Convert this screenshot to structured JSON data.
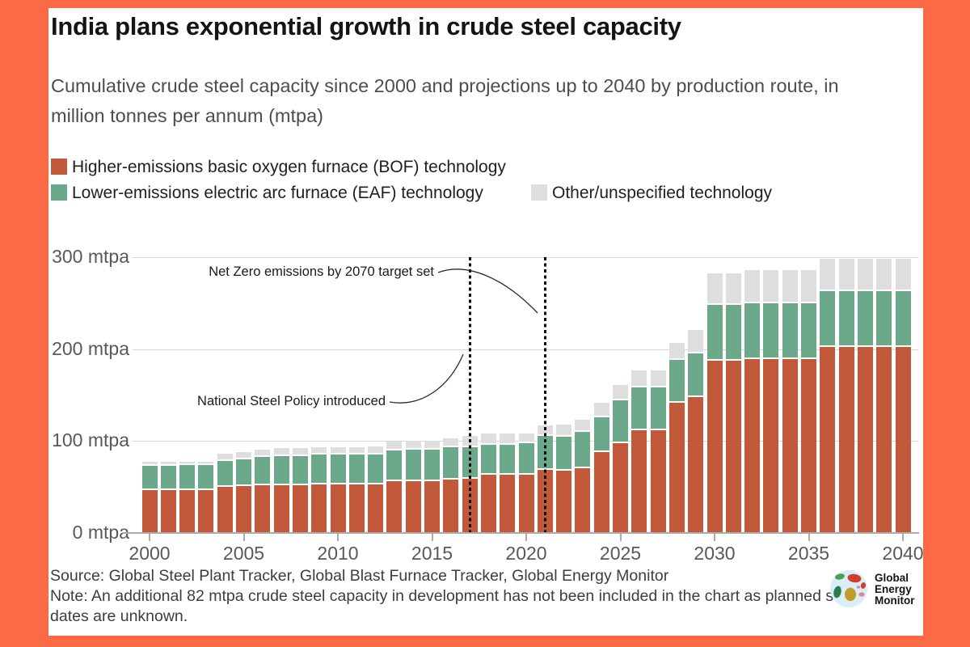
{
  "frame_color": "#FA6A44",
  "title": "India plans exponential growth in crude steel capacity",
  "subtitle": "Cumulative crude steel capacity since 2000 and projections up to 2040 by production route, in million tonnes per annum (mtpa)",
  "legend": [
    {
      "label": "Higher-emissions basic oxygen furnace (BOF) technology",
      "color": "#C2593B"
    },
    {
      "label": "Lower-emissions electric arc furnace (EAF) technology",
      "color": "#6CA88A"
    },
    {
      "label": "Other/unspecified technology",
      "color": "#DEDEDE"
    }
  ],
  "chart_data": {
    "type": "bar",
    "stacked": true,
    "title": "India plans exponential growth in crude steel capacity",
    "xlabel": "",
    "ylabel": "mtpa",
    "ylim": [
      0,
      300
    ],
    "grid": true,
    "legend_position": "top",
    "x": [
      2000,
      2001,
      2002,
      2003,
      2004,
      2005,
      2006,
      2007,
      2008,
      2009,
      2010,
      2011,
      2012,
      2013,
      2014,
      2015,
      2016,
      2017,
      2018,
      2019,
      2020,
      2021,
      2022,
      2023,
      2024,
      2025,
      2026,
      2027,
      2028,
      2029,
      2030,
      2031,
      2032,
      2033,
      2034,
      2035,
      2036,
      2037,
      2038,
      2039,
      2040
    ],
    "series": [
      {
        "name": "Higher-emissions basic oxygen furnace (BOF) technology",
        "color": "#C2593B",
        "values": [
          47,
          47,
          47,
          47,
          50,
          51,
          52,
          52,
          52,
          53,
          53,
          53,
          53,
          56,
          56,
          56,
          58,
          59,
          63,
          63,
          63,
          69,
          68,
          70,
          88,
          98,
          112,
          112,
          142,
          148,
          187,
          187,
          189,
          189,
          189,
          189,
          202,
          202,
          202,
          202,
          202
        ]
      },
      {
        "name": "Lower-emissions electric arc furnace (EAF) technology",
        "color": "#6CA88A",
        "values": [
          26,
          26,
          27,
          27,
          28,
          29,
          31,
          32,
          32,
          32,
          32,
          32,
          32,
          34,
          35,
          35,
          35,
          34,
          33,
          33,
          35,
          37,
          37,
          40,
          38,
          46,
          46,
          46,
          46,
          47,
          61,
          61,
          61,
          61,
          61,
          61,
          61,
          61,
          61,
          61,
          61
        ]
      },
      {
        "name": "Other/unspecified technology",
        "color": "#DEDEDE",
        "values": [
          4,
          4,
          3,
          3,
          8,
          8,
          8,
          8,
          8,
          8,
          8,
          8,
          9,
          9,
          9,
          9,
          10,
          13,
          12,
          12,
          10,
          11,
          13,
          13,
          16,
          17,
          19,
          19,
          19,
          26,
          34,
          34,
          36,
          36,
          36,
          36,
          35,
          35,
          35,
          35,
          35
        ]
      }
    ],
    "yticks": [
      {
        "value": 0,
        "label": "0 mtpa"
      },
      {
        "value": 100,
        "label": "100 mtpa"
      },
      {
        "value": 200,
        "label": "200 mtpa"
      },
      {
        "value": 300,
        "label": "300 mtpa"
      }
    ],
    "xticks": [
      2000,
      2005,
      2010,
      2015,
      2020,
      2025,
      2030,
      2035,
      2040
    ],
    "policy_lines": [
      2017,
      2021
    ],
    "annotations": [
      {
        "text": "Net Zero emissions by 2070 target set",
        "year": 2021
      },
      {
        "text": "National Steel Policy introduced",
        "year": 2017
      }
    ]
  },
  "source_line": "Source: Global Steel Plant Tracker, Global Blast Furnace Tracker, Global Energy Monitor",
  "note_line": "Note: An additional 82 mtpa crude steel capacity in development has not been included in the chart as planned start dates are unknown.",
  "logo": {
    "lines": [
      "Global",
      "Energy",
      "Monitor"
    ]
  }
}
